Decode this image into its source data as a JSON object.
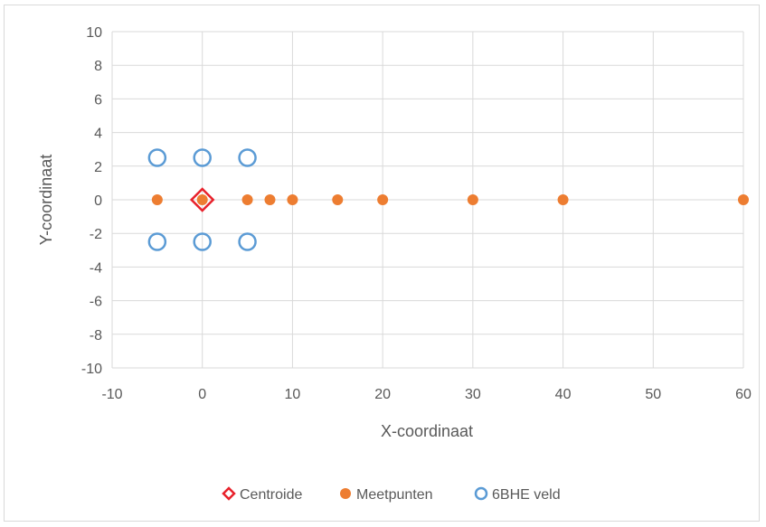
{
  "chart_data": {
    "type": "scatter",
    "title": "",
    "xlabel": "X-coordinaat",
    "ylabel": "Y-coordinaat",
    "xlim": [
      -10,
      60
    ],
    "ylim": [
      -10,
      10
    ],
    "x_ticks": [
      -10,
      0,
      10,
      20,
      30,
      40,
      50,
      60
    ],
    "y_ticks": [
      -10,
      -8,
      -6,
      -4,
      -2,
      0,
      2,
      4,
      6,
      8,
      10
    ],
    "grid": true,
    "legend_position": "bottom",
    "series": [
      {
        "name": "Centroide",
        "marker": "diamond-open",
        "color": "#e8212b",
        "points": [
          {
            "x": 0,
            "y": 0
          }
        ]
      },
      {
        "name": "Meetpunten",
        "marker": "circle-filled",
        "color": "#ed7d31",
        "points": [
          {
            "x": -5,
            "y": 0
          },
          {
            "x": 0,
            "y": 0
          },
          {
            "x": 5,
            "y": 0
          },
          {
            "x": 7.5,
            "y": 0
          },
          {
            "x": 10,
            "y": 0
          },
          {
            "x": 15,
            "y": 0
          },
          {
            "x": 20,
            "y": 0
          },
          {
            "x": 30,
            "y": 0
          },
          {
            "x": 40,
            "y": 0
          },
          {
            "x": 60,
            "y": 0
          }
        ]
      },
      {
        "name": "6BHE veld",
        "marker": "circle-open",
        "color": "#5b9bd5",
        "points": [
          {
            "x": -5,
            "y": 2.5
          },
          {
            "x": 0,
            "y": 2.5
          },
          {
            "x": 5,
            "y": 2.5
          },
          {
            "x": -5,
            "y": -2.5
          },
          {
            "x": 0,
            "y": -2.5
          },
          {
            "x": 5,
            "y": -2.5
          }
        ]
      }
    ]
  }
}
